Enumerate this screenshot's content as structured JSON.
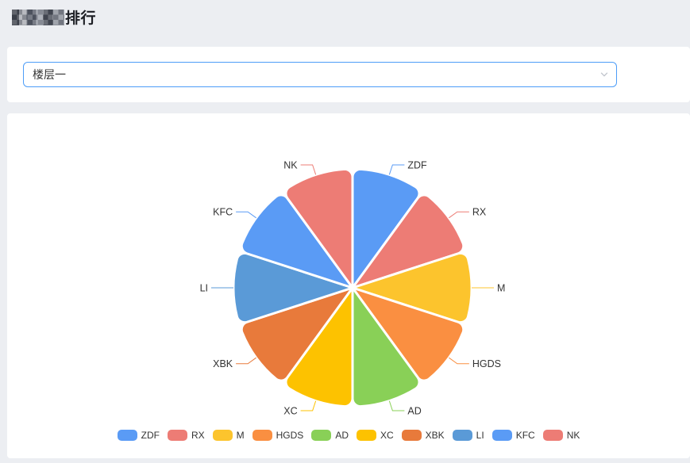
{
  "header": {
    "title_suffix": "排行",
    "title_prefix_redacted": true
  },
  "filter": {
    "selected": "楼层一"
  },
  "colors": {
    "page_bg": "#ECEEF2",
    "card_bg": "#FFFFFF",
    "select_border_focus": "#4D9DF8",
    "title_text": "#1C1E24",
    "body_text": "#333333",
    "chevron_icon": "#C0C4CC"
  },
  "chart_data": {
    "type": "pie",
    "title": "",
    "legend_position": "bottom",
    "legend_icon": "roundRect",
    "slice_style": {
      "border_color": "#FFFFFF",
      "border_width": 3,
      "corner_radius": 10
    },
    "label_line": {
      "length": 13,
      "length2": 15
    },
    "layout": {
      "center": [
        435,
        220
      ],
      "radius": 150,
      "start_angle_deg": -90,
      "clockwise": true
    },
    "series": [
      {
        "name": "ZDF",
        "value": 10,
        "color": "#5A9BF5"
      },
      {
        "name": "RX",
        "value": 10,
        "color": "#ED7C75"
      },
      {
        "name": "M",
        "value": 10,
        "color": "#FCC42D"
      },
      {
        "name": "HGDS",
        "value": 10,
        "color": "#FA8F41"
      },
      {
        "name": "AD",
        "value": 10,
        "color": "#89D057"
      },
      {
        "name": "XC",
        "value": 10,
        "color": "#FDC200"
      },
      {
        "name": "XBK",
        "value": 10,
        "color": "#E87A3B"
      },
      {
        "name": "LI",
        "value": 10,
        "color": "#5A9AD7"
      },
      {
        "name": "KFC",
        "value": 10,
        "color": "#5A9BF5"
      },
      {
        "name": "NK",
        "value": 10,
        "color": "#ED7C75"
      }
    ]
  }
}
